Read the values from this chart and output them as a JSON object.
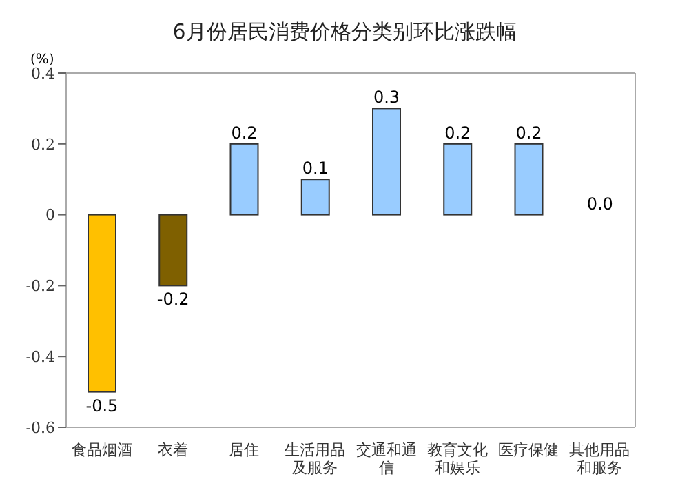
{
  "chart_data": {
    "type": "bar",
    "title": "6月份居民消费价格分类别环比涨跌幅",
    "ylabel": "(%)",
    "categories": [
      "食品烟酒",
      "衣着",
      "居住",
      "生活用品及服务",
      "交通和通信",
      "教育文化和娱乐",
      "医疗保健",
      "其他用品和服务"
    ],
    "values": [
      -0.5,
      -0.2,
      0.2,
      0.1,
      0.3,
      0.2,
      0.2,
      0.0
    ],
    "colors": [
      "#ffc000",
      "#7f6000",
      "#99ccff",
      "#99ccff",
      "#99ccff",
      "#99ccff",
      "#99ccff",
      "#99ccff"
    ],
    "value_labels": [
      "-0.5",
      "-0.2",
      "0.2",
      "0.1",
      "0.3",
      "0.2",
      "0.2",
      "0.0"
    ],
    "ylim": [
      -0.6,
      0.4
    ],
    "yticks": [
      -0.6,
      -0.4,
      -0.2,
      0,
      0.2,
      0.4
    ],
    "grid": false
  }
}
